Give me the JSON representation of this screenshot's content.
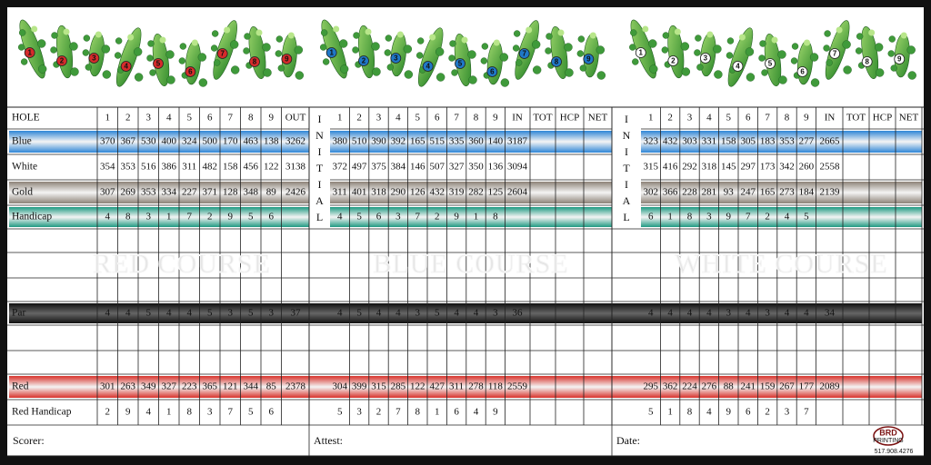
{
  "row_labels": [
    "HOLE",
    "Blue",
    "White",
    "Gold",
    "Handicap",
    "Par",
    "Red",
    "Red Handicap"
  ],
  "row_bands": [
    null,
    "#2f86d6",
    null,
    "#8d8378",
    "#1f9a82",
    "#111111",
    "#d8332c",
    null
  ],
  "initial_label": "INITIAL",
  "courses": [
    {
      "name": "RED COURSE",
      "badge_color": "#d62b2b",
      "holes": [
        1,
        2,
        3,
        4,
        5,
        6,
        7,
        8,
        9
      ],
      "total_label": "OUT",
      "extra_headers": [],
      "values": [
        [
          370,
          367,
          530,
          400,
          324,
          500,
          170,
          463,
          138,
          3262
        ],
        [
          354,
          353,
          516,
          386,
          311,
          482,
          158,
          456,
          122,
          3138
        ],
        [
          307,
          269,
          353,
          334,
          227,
          371,
          128,
          348,
          89,
          2426
        ],
        [
          4,
          8,
          3,
          1,
          7,
          2,
          9,
          5,
          6
        ],
        [
          4,
          4,
          5,
          4,
          4,
          5,
          3,
          5,
          3,
          37
        ],
        [
          301,
          263,
          349,
          327,
          223,
          365,
          121,
          344,
          85,
          2378
        ],
        [
          2,
          9,
          4,
          1,
          8,
          3,
          7,
          5,
          6
        ]
      ]
    },
    {
      "name": "BLUE COURSE",
      "badge_color": "#1f78c8",
      "holes": [
        1,
        2,
        3,
        4,
        5,
        6,
        7,
        8,
        9
      ],
      "total_label": "IN",
      "extra_headers": [
        "TOT",
        "HCP",
        "NET"
      ],
      "values": [
        [
          380,
          510,
          390,
          392,
          165,
          515,
          335,
          360,
          140,
          3187
        ],
        [
          372,
          497,
          375,
          384,
          146,
          507,
          327,
          350,
          136,
          3094
        ],
        [
          311,
          401,
          318,
          290,
          126,
          432,
          319,
          282,
          125,
          2604
        ],
        [
          4,
          5,
          6,
          3,
          7,
          2,
          9,
          1,
          8
        ],
        [
          4,
          5,
          4,
          4,
          3,
          5,
          4,
          4,
          3,
          36
        ],
        [
          304,
          399,
          315,
          285,
          122,
          427,
          311,
          278,
          118,
          2559
        ],
        [
          5,
          3,
          2,
          7,
          8,
          1,
          6,
          4,
          9
        ]
      ]
    },
    {
      "name": "WHITE COURSE",
      "badge_color": "#ffffff",
      "holes": [
        1,
        2,
        3,
        4,
        5,
        6,
        7,
        8,
        9
      ],
      "total_label": "IN",
      "extra_headers": [
        "TOT",
        "HCP",
        "NET"
      ],
      "values": [
        [
          323,
          432,
          303,
          331,
          158,
          305,
          183,
          353,
          277,
          2665
        ],
        [
          315,
          416,
          292,
          318,
          145,
          297,
          173,
          342,
          260,
          2558
        ],
        [
          302,
          366,
          228,
          281,
          93,
          247,
          165,
          273,
          184,
          2139
        ],
        [
          6,
          1,
          8,
          3,
          9,
          7,
          2,
          4,
          5
        ],
        [
          4,
          4,
          4,
          4,
          3,
          4,
          3,
          4,
          4,
          34
        ],
        [
          295,
          362,
          224,
          276,
          88,
          241,
          159,
          267,
          177,
          2089
        ],
        [
          5,
          1,
          8,
          4,
          9,
          6,
          2,
          3,
          7
        ]
      ]
    }
  ],
  "footer": [
    "Scorer:",
    "Attest:",
    "Date:"
  ],
  "logo": {
    "name": "BRD",
    "sub": "PRINTING",
    "phone": "517.908.4276"
  }
}
